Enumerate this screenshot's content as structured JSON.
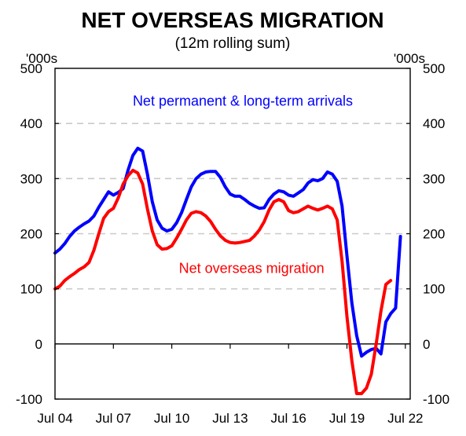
{
  "chart_data": {
    "type": "line",
    "title": "NET OVERSEAS MIGRATION",
    "subtitle": "(12m rolling sum)",
    "y_unit_left": "'000s",
    "y_unit_right": "'000s",
    "ylim": [
      -100,
      500
    ],
    "y_ticks": [
      "500",
      "400",
      "300",
      "200",
      "100",
      "0",
      "-100"
    ],
    "y_tick_values": [
      500,
      400,
      300,
      200,
      100,
      0,
      -100
    ],
    "xlim": [
      2004.5,
      2022.75
    ],
    "x_tick_labels": [
      "Jul 04",
      "Jul 07",
      "Jul 10",
      "Jul 13",
      "Jul 16",
      "Jul 19",
      "Jul 22"
    ],
    "x_tick_values": [
      2004.5,
      2007.5,
      2010.5,
      2013.5,
      2016.5,
      2019.5,
      2022.5
    ],
    "grid": true,
    "series": [
      {
        "name": "Net permanent & long-term arrivals",
        "color": "#0000ff",
        "x": [
          2004.5,
          2004.75,
          2005.0,
          2005.25,
          2005.5,
          2005.75,
          2006.0,
          2006.25,
          2006.5,
          2006.75,
          2007.0,
          2007.25,
          2007.5,
          2007.75,
          2008.0,
          2008.25,
          2008.5,
          2008.75,
          2009.0,
          2009.25,
          2009.5,
          2009.75,
          2010.0,
          2010.25,
          2010.5,
          2010.75,
          2011.0,
          2011.25,
          2011.5,
          2011.75,
          2012.0,
          2012.25,
          2012.5,
          2012.75,
          2013.0,
          2013.25,
          2013.5,
          2013.75,
          2014.0,
          2014.25,
          2014.5,
          2014.75,
          2015.0,
          2015.25,
          2015.5,
          2015.75,
          2016.0,
          2016.25,
          2016.5,
          2016.75,
          2017.0,
          2017.25,
          2017.5,
          2017.75,
          2018.0,
          2018.25,
          2018.5,
          2018.75,
          2019.0,
          2019.25,
          2019.5,
          2019.75,
          2020.0,
          2020.25,
          2020.5,
          2020.75,
          2021.0,
          2021.25,
          2021.5,
          2021.75,
          2022.0,
          2022.25
        ],
        "values": [
          165,
          172,
          182,
          195,
          205,
          212,
          218,
          223,
          232,
          248,
          262,
          276,
          270,
          275,
          282,
          315,
          342,
          355,
          350,
          308,
          258,
          225,
          210,
          205,
          208,
          220,
          238,
          262,
          285,
          300,
          308,
          312,
          313,
          313,
          302,
          285,
          272,
          268,
          268,
          262,
          255,
          250,
          246,
          247,
          262,
          272,
          278,
          276,
          270,
          268,
          274,
          280,
          292,
          298,
          296,
          300,
          312,
          308,
          295,
          250,
          160,
          75,
          15,
          -22,
          -15,
          -10,
          -8,
          -18,
          40,
          55,
          65,
          195
        ]
      },
      {
        "name": "Net overseas migration",
        "color": "#ff0000",
        "x": [
          2004.5,
          2004.75,
          2005.0,
          2005.25,
          2005.5,
          2005.75,
          2006.0,
          2006.25,
          2006.5,
          2006.75,
          2007.0,
          2007.25,
          2007.5,
          2007.75,
          2008.0,
          2008.25,
          2008.5,
          2008.75,
          2009.0,
          2009.25,
          2009.5,
          2009.75,
          2010.0,
          2010.25,
          2010.5,
          2010.75,
          2011.0,
          2011.25,
          2011.5,
          2011.75,
          2012.0,
          2012.25,
          2012.5,
          2012.75,
          2013.0,
          2013.25,
          2013.5,
          2013.75,
          2014.0,
          2014.25,
          2014.5,
          2014.75,
          2015.0,
          2015.25,
          2015.5,
          2015.75,
          2016.0,
          2016.25,
          2016.5,
          2016.75,
          2017.0,
          2017.25,
          2017.5,
          2017.75,
          2018.0,
          2018.25,
          2018.5,
          2018.75,
          2019.0,
          2019.25,
          2019.5,
          2019.75,
          2020.0,
          2020.25,
          2020.5,
          2020.75,
          2021.0,
          2021.25,
          2021.5,
          2021.75
        ],
        "values": [
          100,
          105,
          115,
          122,
          128,
          135,
          140,
          148,
          170,
          200,
          228,
          240,
          246,
          265,
          290,
          305,
          315,
          310,
          290,
          245,
          205,
          180,
          172,
          173,
          178,
          192,
          208,
          225,
          237,
          240,
          238,
          232,
          222,
          208,
          196,
          188,
          184,
          183,
          184,
          186,
          188,
          196,
          207,
          222,
          243,
          258,
          262,
          258,
          242,
          238,
          240,
          245,
          250,
          246,
          243,
          246,
          250,
          245,
          225,
          150,
          50,
          -30,
          -90,
          -90,
          -80,
          -55,
          0,
          60,
          108,
          115
        ]
      }
    ],
    "annotations": [
      {
        "text": "Net permanent & long-term arrivals",
        "color": "#0000ff",
        "x": 2014.15,
        "y": 432
      },
      {
        "text": "Net overseas migration",
        "color": "#ff0000",
        "x": 2014.6,
        "y": 129
      }
    ]
  }
}
